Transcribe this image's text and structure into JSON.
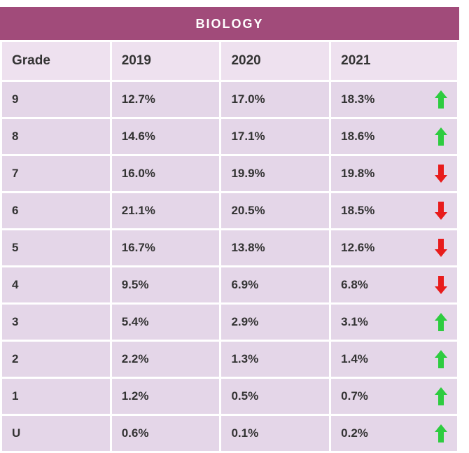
{
  "title": "BIOLOGY",
  "colors": {
    "title_bg": "#a14b7a",
    "title_fg": "#ffffff",
    "header_bg": "#eee1ef",
    "row_bg": "#e4d6e8",
    "text": "#333333",
    "arrow_up": "#2ecc40",
    "arrow_down": "#e81c1c"
  },
  "table": {
    "columns": [
      "Grade",
      "2019",
      "2020",
      "2021"
    ],
    "rows": [
      {
        "grade": "9",
        "y2019": "12.7%",
        "y2020": "17.0%",
        "y2021": "18.3%",
        "trend": "up"
      },
      {
        "grade": "8",
        "y2019": "14.6%",
        "y2020": "17.1%",
        "y2021": "18.6%",
        "trend": "up"
      },
      {
        "grade": "7",
        "y2019": "16.0%",
        "y2020": "19.9%",
        "y2021": "19.8%",
        "trend": "down"
      },
      {
        "grade": "6",
        "y2019": "21.1%",
        "y2020": "20.5%",
        "y2021": "18.5%",
        "trend": "down"
      },
      {
        "grade": "5",
        "y2019": "16.7%",
        "y2020": "13.8%",
        "y2021": "12.6%",
        "trend": "down"
      },
      {
        "grade": "4",
        "y2019": "9.5%",
        "y2020": "6.9%",
        "y2021": "6.8%",
        "trend": "down"
      },
      {
        "grade": "3",
        "y2019": "5.4%",
        "y2020": "2.9%",
        "y2021": "3.1%",
        "trend": "up"
      },
      {
        "grade": "2",
        "y2019": "2.2%",
        "y2020": "1.3%",
        "y2021": "1.4%",
        "trend": "up"
      },
      {
        "grade": "1",
        "y2019": "1.2%",
        "y2020": "0.5%",
        "y2021": "0.7%",
        "trend": "up"
      },
      {
        "grade": "U",
        "y2019": "0.6%",
        "y2020": "0.1%",
        "y2021": "0.2%",
        "trend": "up"
      }
    ]
  }
}
